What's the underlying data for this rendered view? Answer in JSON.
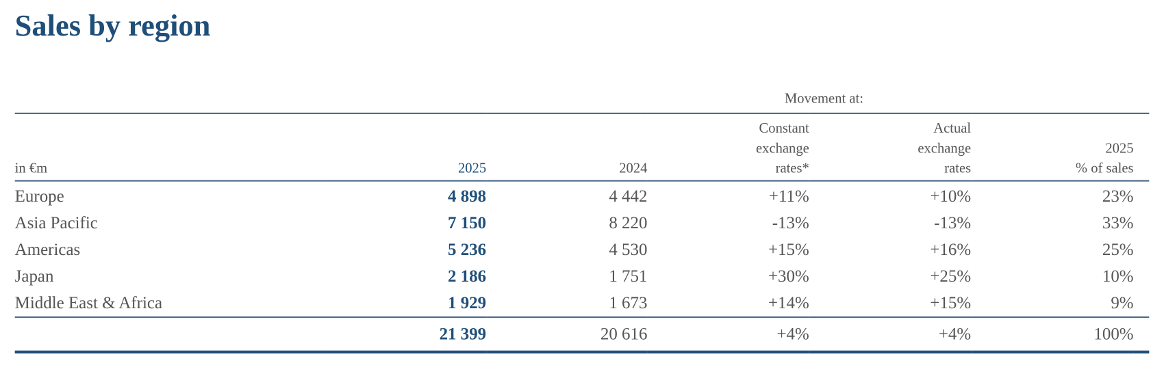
{
  "title": "Sales by region",
  "group_header": "Movement at:",
  "columns": [
    {
      "lines": [
        "in €m"
      ]
    },
    {
      "lines": [
        "2025"
      ]
    },
    {
      "lines": [
        "2024"
      ]
    },
    {
      "lines": [
        "Constant",
        "exchange",
        "rates*"
      ]
    },
    {
      "lines": [
        "Actual",
        "exchange",
        "rates"
      ]
    },
    {
      "lines": [
        "2025",
        "% of sales"
      ]
    }
  ],
  "rows": [
    [
      "Europe",
      "4 898",
      "4 442",
      "+11%",
      "+10%",
      "23%"
    ],
    [
      "Asia Pacific",
      "7 150",
      "8 220",
      "-13%",
      "-13%",
      "33%"
    ],
    [
      "Americas",
      "5 236",
      "4 530",
      "+15%",
      "+16%",
      "25%"
    ],
    [
      "Japan",
      "2 186",
      "1 751",
      "+30%",
      "+25%",
      "10%"
    ],
    [
      "Middle East & Africa",
      "1 929",
      "1 673",
      "+14%",
      "+15%",
      "9%"
    ]
  ],
  "total": [
    "21 399",
    "20 616",
    "+4%",
    "+4%",
    "100%"
  ]
}
